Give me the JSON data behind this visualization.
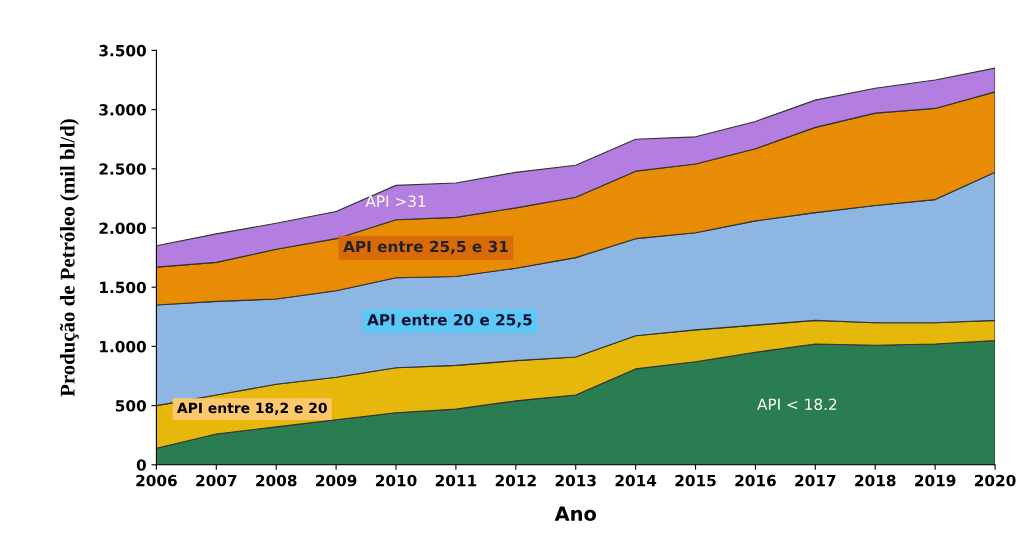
{
  "chart_data": {
    "type": "area",
    "stacked": true,
    "xlabel": "Ano",
    "ylabel": "Produção de Petróleo (mil bl/d)",
    "categories": [
      "2006",
      "2007",
      "2008",
      "2009",
      "2010",
      "2011",
      "2012",
      "2013",
      "2014",
      "2015",
      "2016",
      "2017",
      "2018",
      "2019",
      "2020"
    ],
    "ylim": [
      0,
      3500
    ],
    "yticks": [
      0,
      500,
      {
        "value": 1000,
        "label": "1.000"
      },
      {
        "value": 1500,
        "label": "1.500"
      },
      {
        "value": 2000,
        "label": "2.000"
      },
      {
        "value": 2500,
        "label": "2.500"
      },
      {
        "value": 3000,
        "label": "3.000"
      },
      {
        "value": 3500,
        "label": "3.500"
      }
    ],
    "grid": false,
    "legend": false,
    "series": [
      {
        "name": "API < 18.2",
        "color": "#2a7d50",
        "values": [
          140,
          260,
          320,
          380,
          440,
          470,
          540,
          590,
          810,
          870,
          950,
          1020,
          1010,
          1020,
          1050
        ]
      },
      {
        "name": "API entre 18,2 e 20",
        "color": "#e6b80c",
        "values": [
          360,
          330,
          360,
          360,
          380,
          370,
          340,
          320,
          280,
          270,
          230,
          200,
          190,
          180,
          170
        ]
      },
      {
        "name": "API entre 20 e 25,5",
        "color": "#8db6e2",
        "values": [
          850,
          790,
          720,
          730,
          760,
          750,
          780,
          840,
          820,
          820,
          880,
          910,
          990,
          1040,
          1250
        ]
      },
      {
        "name": "API entre 25,5 e 31",
        "color": "#e88c06",
        "values": [
          320,
          330,
          420,
          440,
          490,
          500,
          510,
          510,
          570,
          580,
          610,
          720,
          780,
          770,
          680
        ]
      },
      {
        "name": "API >31",
        "color": "#b47ee0",
        "values": [
          180,
          240,
          220,
          230,
          290,
          290,
          300,
          270,
          270,
          230,
          230,
          230,
          210,
          240,
          200
        ]
      }
    ]
  }
}
